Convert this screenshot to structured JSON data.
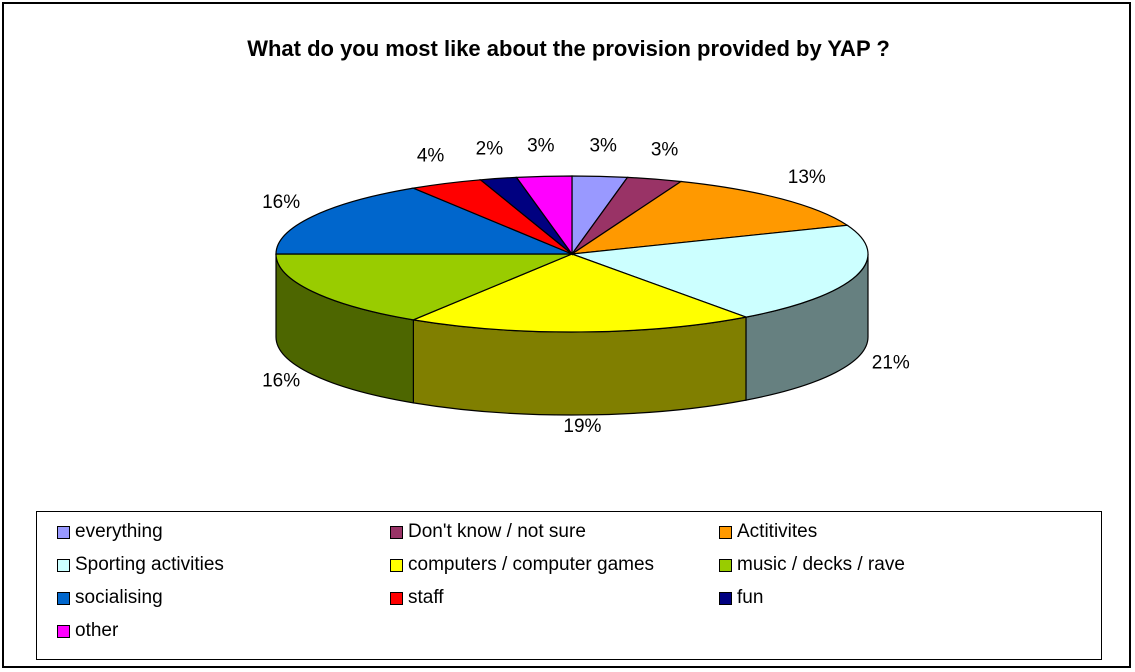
{
  "chart_data": {
    "type": "pie",
    "title": "What do you most like about the provision provided by YAP ?",
    "categories": [
      "everything",
      "Don't know / not sure",
      "Actitivites",
      "Sporting activities",
      "computers / computer games",
      "music / decks / rave",
      "socialising",
      "staff",
      "fun",
      "other"
    ],
    "values": [
      3,
      3,
      13,
      21,
      19,
      16,
      16,
      4,
      2,
      3
    ],
    "data_labels": [
      "3%",
      "3%",
      "13%",
      "21%",
      "19%",
      "16%",
      "16%",
      "4%",
      "2%",
      "3%"
    ],
    "colors": [
      "#9999FF",
      "#993366",
      "#FF9900",
      "#CCFFFF",
      "#FFFF00",
      "#99CC00",
      "#0066CC",
      "#FF0000",
      "#000080",
      "#FF00FF"
    ],
    "side_colors": [
      "#6666B3",
      "#662244",
      "#B36B00",
      "#668080",
      "#807F00",
      "#4D6600",
      "#00437F",
      "#B30000",
      "#000055",
      "#B300B3"
    ],
    "style": "3d-pie",
    "legend_position": "bottom"
  }
}
